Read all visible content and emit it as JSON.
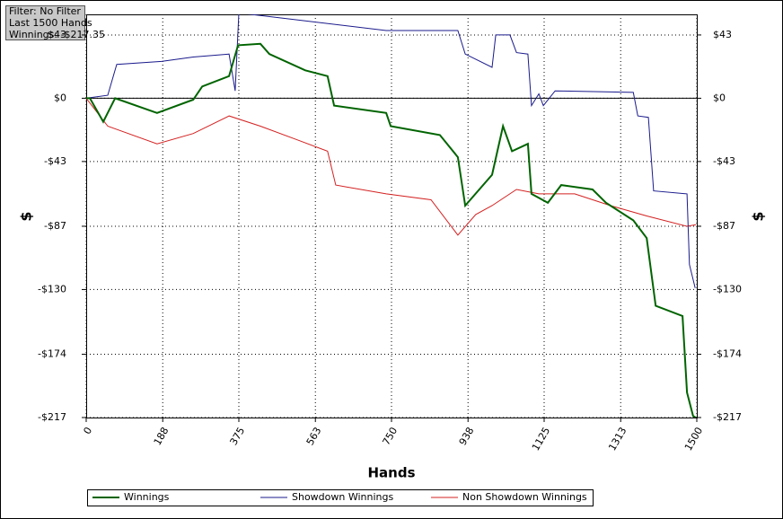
{
  "info": {
    "filter": "Filter: No Filter",
    "hands": "Last 1500 Hands",
    "winnings": "Winnings: -$217.35"
  },
  "chart_data": {
    "type": "line",
    "xlabel": "Hands",
    "ylabel": "$",
    "y2label": "$",
    "xlim": [
      0,
      1500
    ],
    "xticks": [
      0,
      188,
      375,
      563,
      750,
      938,
      1125,
      1313,
      1500
    ],
    "ylim": [
      -217,
      57
    ],
    "yticks": [
      {
        "value": 43,
        "label": "$43"
      },
      {
        "value": 0,
        "label": "$0"
      },
      {
        "value": -43,
        "label": "-$43"
      },
      {
        "value": -87,
        "label": "-$87"
      },
      {
        "value": -130,
        "label": "-$130"
      },
      {
        "value": -174,
        "label": "-$174"
      },
      {
        "value": -217,
        "label": "-$217"
      }
    ],
    "grid": true,
    "series": [
      {
        "name": "Winnings",
        "color": "#006400",
        "x": [
          0,
          9,
          42,
          71,
          174,
          263,
          285,
          351,
          373,
          428,
          450,
          538,
          593,
          609,
          737,
          748,
          869,
          913,
          931,
          997,
          1024,
          1046,
          1085,
          1094,
          1134,
          1167,
          1244,
          1277,
          1344,
          1377,
          1399,
          1465,
          1476,
          1491,
          1500
        ],
        "values": [
          0,
          0,
          -16,
          0,
          -10,
          -1,
          8,
          15,
          36,
          37,
          30,
          19,
          15,
          -5,
          -10,
          -19,
          -25,
          -40,
          -73,
          -52,
          -19,
          -36,
          -31,
          -65,
          -71,
          -59,
          -62,
          -71,
          -83,
          -95,
          -141,
          -148,
          -200,
          -216,
          -217.35
        ]
      },
      {
        "name": "Showdown Winnings",
        "color": "#1a1a8c",
        "x": [
          0,
          53,
          75,
          185,
          263,
          351,
          366,
          375,
          737,
          913,
          931,
          997,
          1006,
          1041,
          1057,
          1085,
          1094,
          1112,
          1123,
          1152,
          1344,
          1355,
          1381,
          1394,
          1476,
          1482,
          1496
        ],
        "values": [
          0,
          2,
          23,
          25,
          28,
          30,
          5,
          58,
          46,
          46,
          30,
          21,
          43,
          43,
          31,
          30,
          -5,
          3,
          -5,
          5,
          4,
          -12,
          -13,
          -63,
          -65,
          -113,
          -129
        ]
      },
      {
        "name": "Non Showdown Winnings",
        "color": "#d42020",
        "x": [
          0,
          53,
          174,
          263,
          351,
          428,
          516,
          593,
          613,
          737,
          847,
          913,
          957,
          997,
          1057,
          1112,
          1200,
          1288,
          1377,
          1476,
          1498
        ],
        "values": [
          0,
          -19,
          -31,
          -24,
          -12,
          -19,
          -28,
          -36,
          -59,
          -65,
          -69,
          -93,
          -79,
          -73,
          -62,
          -65,
          -65,
          -73,
          -80,
          -87,
          -86
        ]
      }
    ]
  }
}
